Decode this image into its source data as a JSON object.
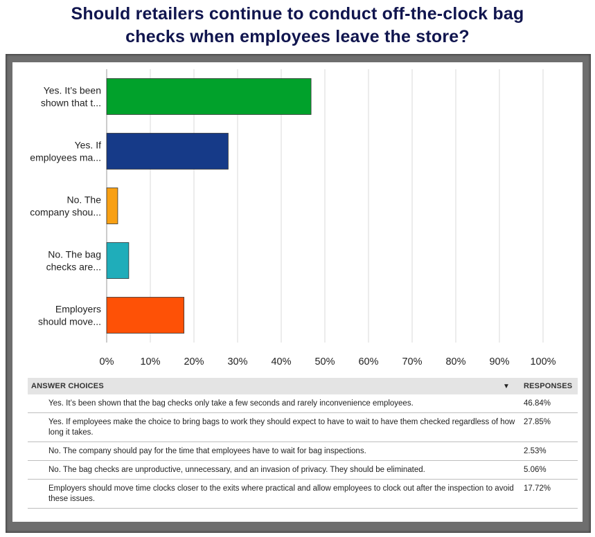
{
  "title_line1": "Should retailers continue to conduct off-the-clock bag",
  "title_line2": "checks when employees leave the store?",
  "colors": {
    "title": "#10154e",
    "bars": [
      "#01a12b",
      "#163a88",
      "#f8a014",
      "#1fadba",
      "#fe5106"
    ],
    "grid": "#d9d9d9"
  },
  "chart_data": {
    "type": "bar",
    "orientation": "horizontal",
    "categories": [
      [
        "Yes. It’s been",
        "shown that t..."
      ],
      [
        "Yes. If",
        "employees ma..."
      ],
      [
        "No. The",
        "company shou..."
      ],
      [
        "No. The bag",
        "checks are..."
      ],
      [
        "Employers",
        "should move..."
      ]
    ],
    "values": [
      46.84,
      27.85,
      2.53,
      5.06,
      17.72
    ],
    "xlim": [
      0,
      100
    ],
    "xticks": [
      "0%",
      "10%",
      "20%",
      "30%",
      "40%",
      "50%",
      "60%",
      "70%",
      "80%",
      "90%",
      "100%"
    ],
    "grid": true
  },
  "table": {
    "header_choices": "ANSWER CHOICES",
    "header_responses": "RESPONSES",
    "rows": [
      {
        "text": "Yes. It’s been shown that the bag checks only take a few seconds and rarely inconvenience employees.",
        "pct": "46.84%"
      },
      {
        "text": "Yes. If employees make the choice to bring bags to work they should expect to have to wait to have them checked regardless of how long it takes.",
        "pct": "27.85%"
      },
      {
        "text": "No. The company should pay for the time that employees have to wait for bag inspections.",
        "pct": "2.53%"
      },
      {
        "text": "No. The bag checks are unproductive, unnecessary, and an invasion of privacy. They should be eliminated.",
        "pct": "5.06%"
      },
      {
        "text": "Employers should move time clocks closer to the exits where practical and allow employees to clock out after the inspection to avoid these issues.",
        "pct": "17.72%"
      }
    ]
  }
}
